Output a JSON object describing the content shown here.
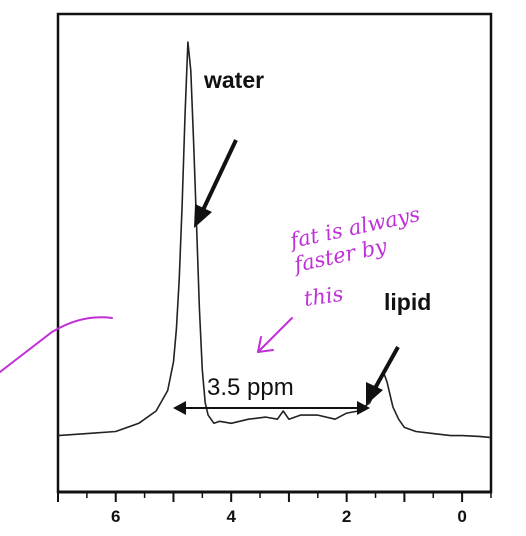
{
  "chart_data": {
    "type": "line",
    "title": "",
    "xlabel": "",
    "ylabel": "",
    "xlim": [
      7.0,
      -0.5
    ],
    "x_reversed": true,
    "x_ticks": [
      6,
      4,
      2,
      0
    ],
    "x_tick_labels": [
      "6",
      "4",
      "2",
      "0"
    ],
    "series": [
      {
        "x": [
          7.0,
          6.5,
          6.0,
          5.6,
          5.3,
          5.1,
          5.0,
          4.95,
          4.9,
          4.85,
          4.8,
          4.75,
          4.7,
          4.65,
          4.6,
          4.55,
          4.5,
          4.45,
          4.4,
          4.3,
          4.2,
          4.0,
          3.7,
          3.4,
          3.2,
          3.1,
          3.0,
          2.8,
          2.5,
          2.2,
          2.0,
          1.8,
          1.6,
          1.5,
          1.4,
          1.35,
          1.3,
          1.2,
          1.1,
          1.0,
          0.8,
          0.5,
          0.2,
          0.0,
          -0.3,
          -0.5
        ],
        "y": [
          0.04,
          0.045,
          0.05,
          0.07,
          0.1,
          0.15,
          0.22,
          0.3,
          0.42,
          0.6,
          0.82,
          1.0,
          0.93,
          0.75,
          0.55,
          0.35,
          0.2,
          0.12,
          0.09,
          0.07,
          0.075,
          0.07,
          0.08,
          0.085,
          0.08,
          0.1,
          0.08,
          0.09,
          0.09,
          0.08,
          0.095,
          0.1,
          0.12,
          0.15,
          0.18,
          0.19,
          0.17,
          0.11,
          0.08,
          0.06,
          0.05,
          0.045,
          0.04,
          0.04,
          0.038,
          0.035
        ]
      }
    ],
    "annotations": {
      "water": "water",
      "lipid": "lipid",
      "separation": "3.5 ppm"
    }
  },
  "handwriting": {
    "line1": "fat is always",
    "line2": "faster by",
    "line3": "this"
  },
  "colors": {
    "spectrum": "#222222",
    "frame": "#111111",
    "handwriting": "#c030d8"
  }
}
